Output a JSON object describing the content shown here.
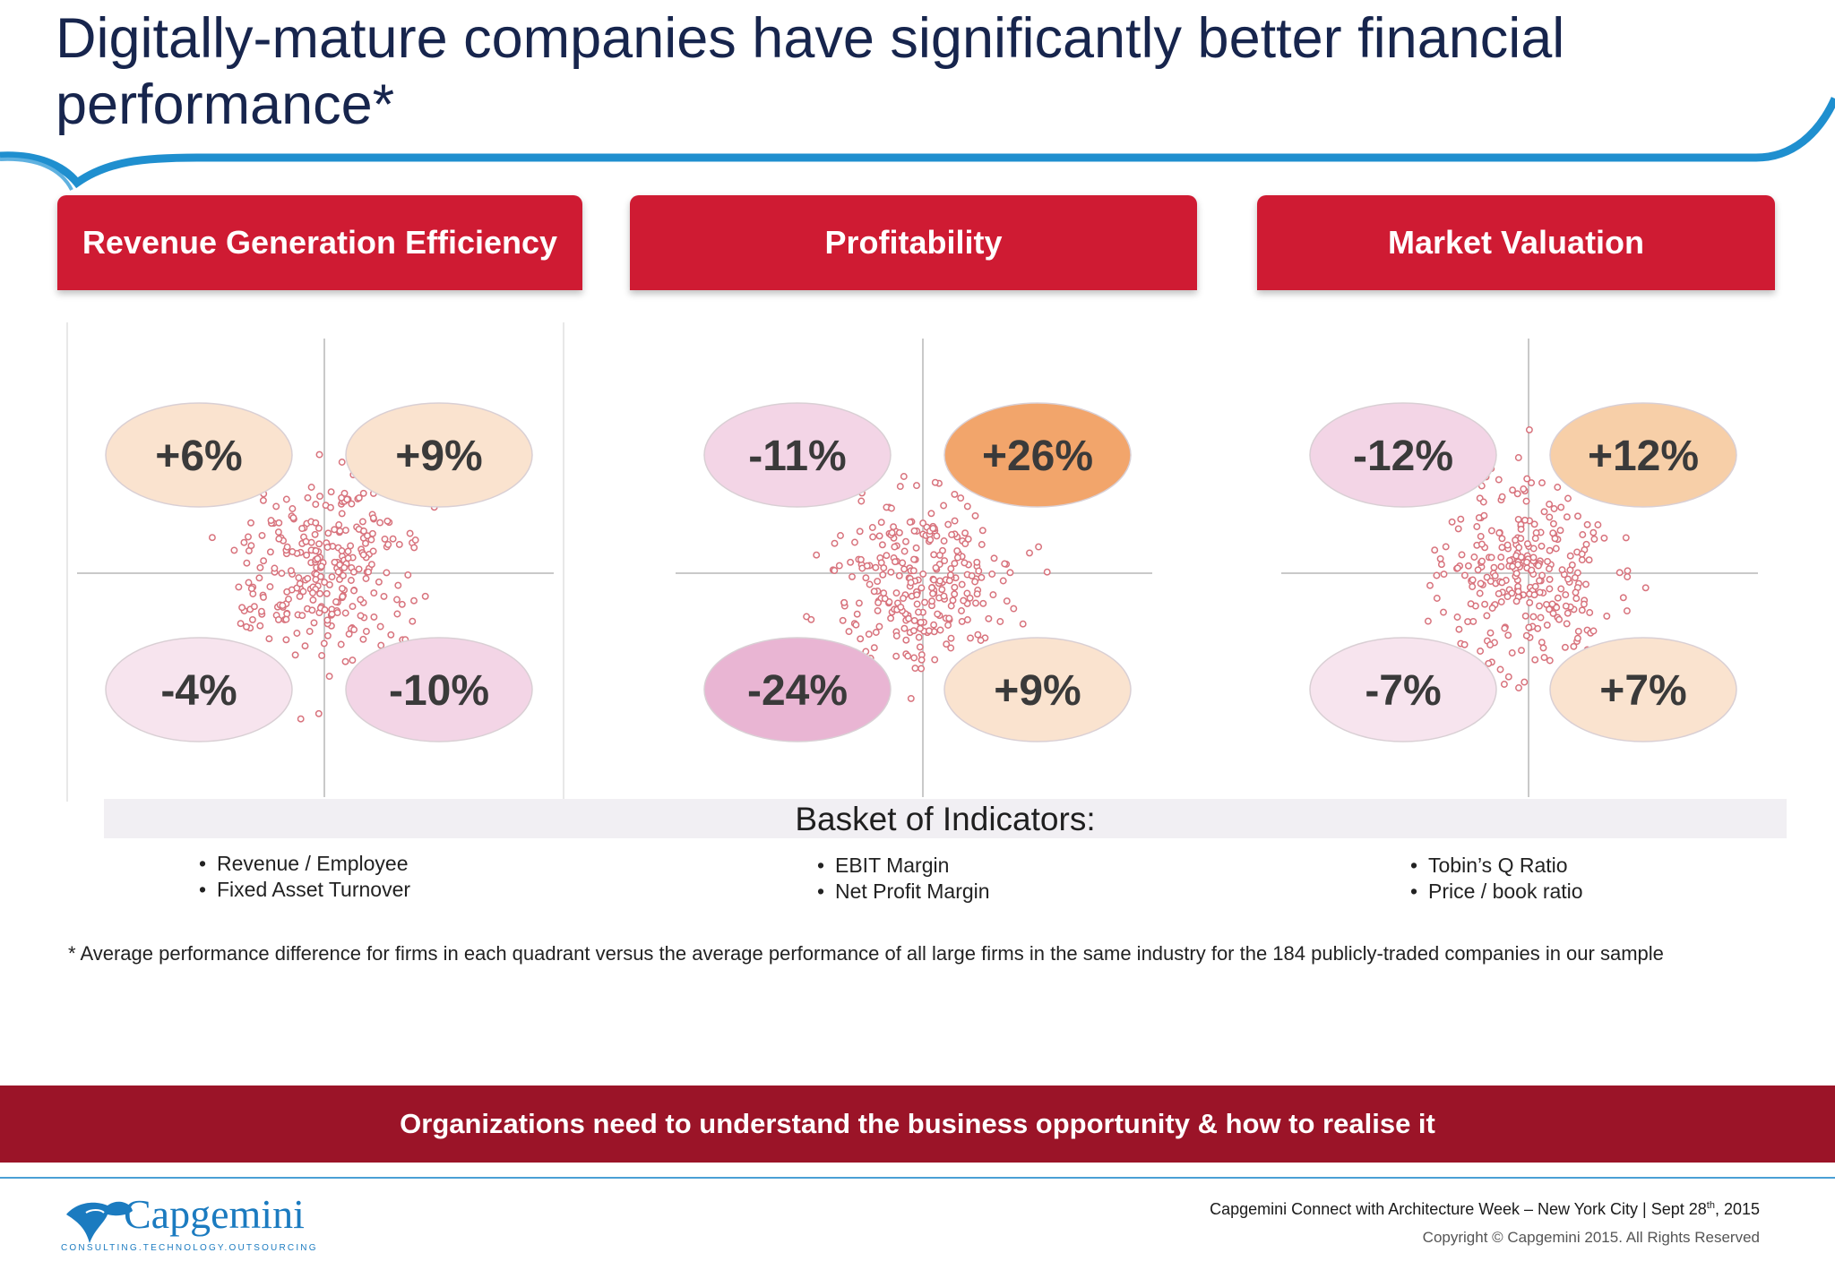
{
  "slide": {
    "title": "Digitally-mature companies have significantly better financial performance*"
  },
  "colors": {
    "header_red": "#cf1b33",
    "banner_red": "#9b1428",
    "title_navy": "#17254d",
    "swoosh_blue": "#1f8fcf",
    "dot_red": "#d8737d"
  },
  "chart_data": [
    {
      "type": "scatter",
      "title": "Revenue Generation Efficiency",
      "quadrants": {
        "top_left": "+6%",
        "top_right": "+9%",
        "bottom_left": "-4%",
        "bottom_right": "-10%"
      },
      "quadrant_colors": {
        "top_left": "#fae3cf",
        "top_right": "#fae3cf",
        "bottom_left": "#f7e4ee",
        "bottom_right": "#f3d5e6"
      },
      "indicators": [
        "Revenue / Employee",
        "Fixed Asset Turnover"
      ]
    },
    {
      "type": "scatter",
      "title": "Profitability",
      "quadrants": {
        "top_left": "-11%",
        "top_right": "+26%",
        "bottom_left": "-24%",
        "bottom_right": "+9%"
      },
      "quadrant_colors": {
        "top_left": "#f3d5e6",
        "top_right": "#f2a56b",
        "bottom_left": "#e9b5d3",
        "bottom_right": "#fae3cf"
      },
      "indicators": [
        "EBIT Margin",
        "Net Profit Margin"
      ]
    },
    {
      "type": "scatter",
      "title": "Market Valuation",
      "quadrants": {
        "top_left": "-12%",
        "top_right": "+12%",
        "bottom_left": "-7%",
        "bottom_right": "+7%"
      },
      "quadrant_colors": {
        "top_left": "#f3d5e6",
        "top_right": "#f7cfa8",
        "bottom_left": "#f7e4ee",
        "bottom_right": "#fae3cf"
      },
      "indicators": [
        "Tobin’s Q Ratio",
        "Price / book ratio"
      ]
    }
  ],
  "basket": {
    "title": "Basket of Indicators:"
  },
  "footnote": "* Average performance difference for firms in each quadrant versus the average performance of all large firms in the same industry for the 184 publicly-traded companies in our sample",
  "banner": {
    "text": "Organizations need to understand the business opportunity & how to realise it"
  },
  "footer": {
    "logo_word": "Capgemini",
    "logo_tagline": "CONSULTING.TECHNOLOGY.OUTSOURCING",
    "event_prefix": "Capgemini Connect with Architecture Week – New York City | Sept 28",
    "event_sup": "th",
    "event_suffix": ", 2015",
    "copyright": "Copyright © Capgemini 2015. All Rights Reserved"
  }
}
